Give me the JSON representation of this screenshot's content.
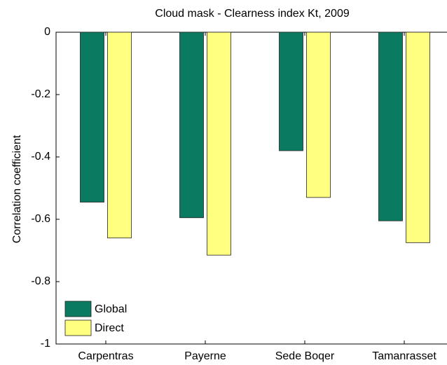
{
  "chart_data": {
    "type": "bar",
    "title": "Cloud mask - Clearness index Kt, 2009",
    "ylabel": "Correlation coefficient",
    "categories": [
      "Carpentras",
      "Payerne",
      "Sede Boqer",
      "Tamanrasset"
    ],
    "series": [
      {
        "name": "Global",
        "color": "#0a7a60",
        "values": [
          -0.545,
          -0.595,
          -0.38,
          -0.605
        ]
      },
      {
        "name": "Direct",
        "color": "#ffff80",
        "values": [
          -0.66,
          -0.715,
          -0.53,
          -0.675
        ]
      }
    ],
    "ylim": [
      -1,
      0
    ],
    "yticks": [
      0,
      -0.2,
      -0.4,
      -0.6,
      -0.8,
      -1
    ],
    "legend": "lower left"
  }
}
